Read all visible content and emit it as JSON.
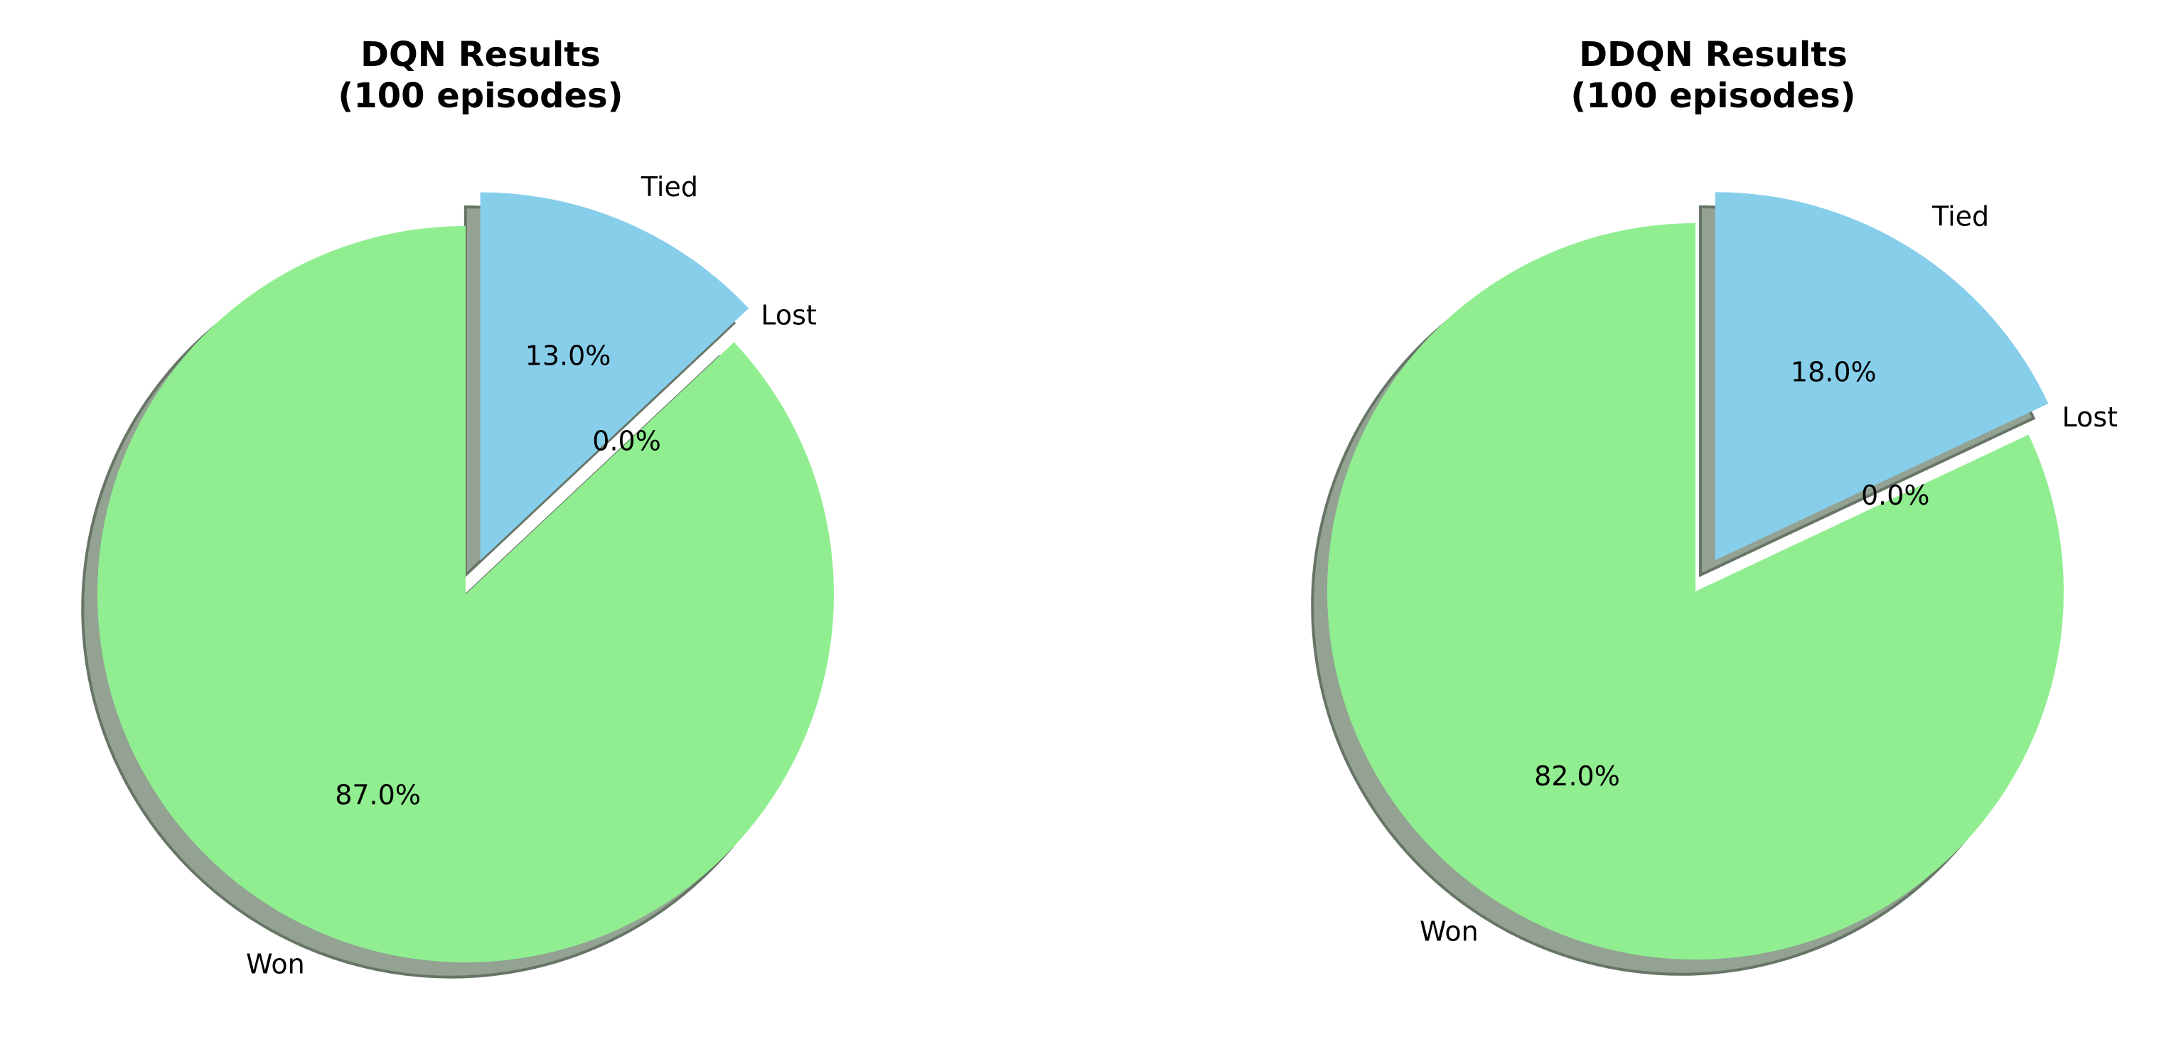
{
  "chart_data": [
    {
      "type": "pie",
      "title": "DQN Results\n(100 episodes)",
      "categories": [
        "Won",
        "Lost",
        "Tied"
      ],
      "values": [
        87.0,
        0.0,
        13.0
      ],
      "percent_labels": [
        "87.0%",
        "0.0%",
        "13.0%"
      ],
      "colors": [
        "#90ee90",
        "#f08080",
        "#87ceeb"
      ],
      "exploded": [
        "Tied"
      ],
      "shadow": true,
      "start_angle_deg": 90,
      "legend": "none"
    },
    {
      "type": "pie",
      "title": "DDQN Results\n(100 episodes)",
      "categories": [
        "Won",
        "Lost",
        "Tied"
      ],
      "values": [
        82.0,
        0.0,
        18.0
      ],
      "percent_labels": [
        "82.0%",
        "0.0%",
        "18.0%"
      ],
      "colors": [
        "#90ee90",
        "#f08080",
        "#87ceeb"
      ],
      "exploded": [
        "Tied"
      ],
      "shadow": true,
      "start_angle_deg": 90,
      "legend": "none"
    }
  ]
}
